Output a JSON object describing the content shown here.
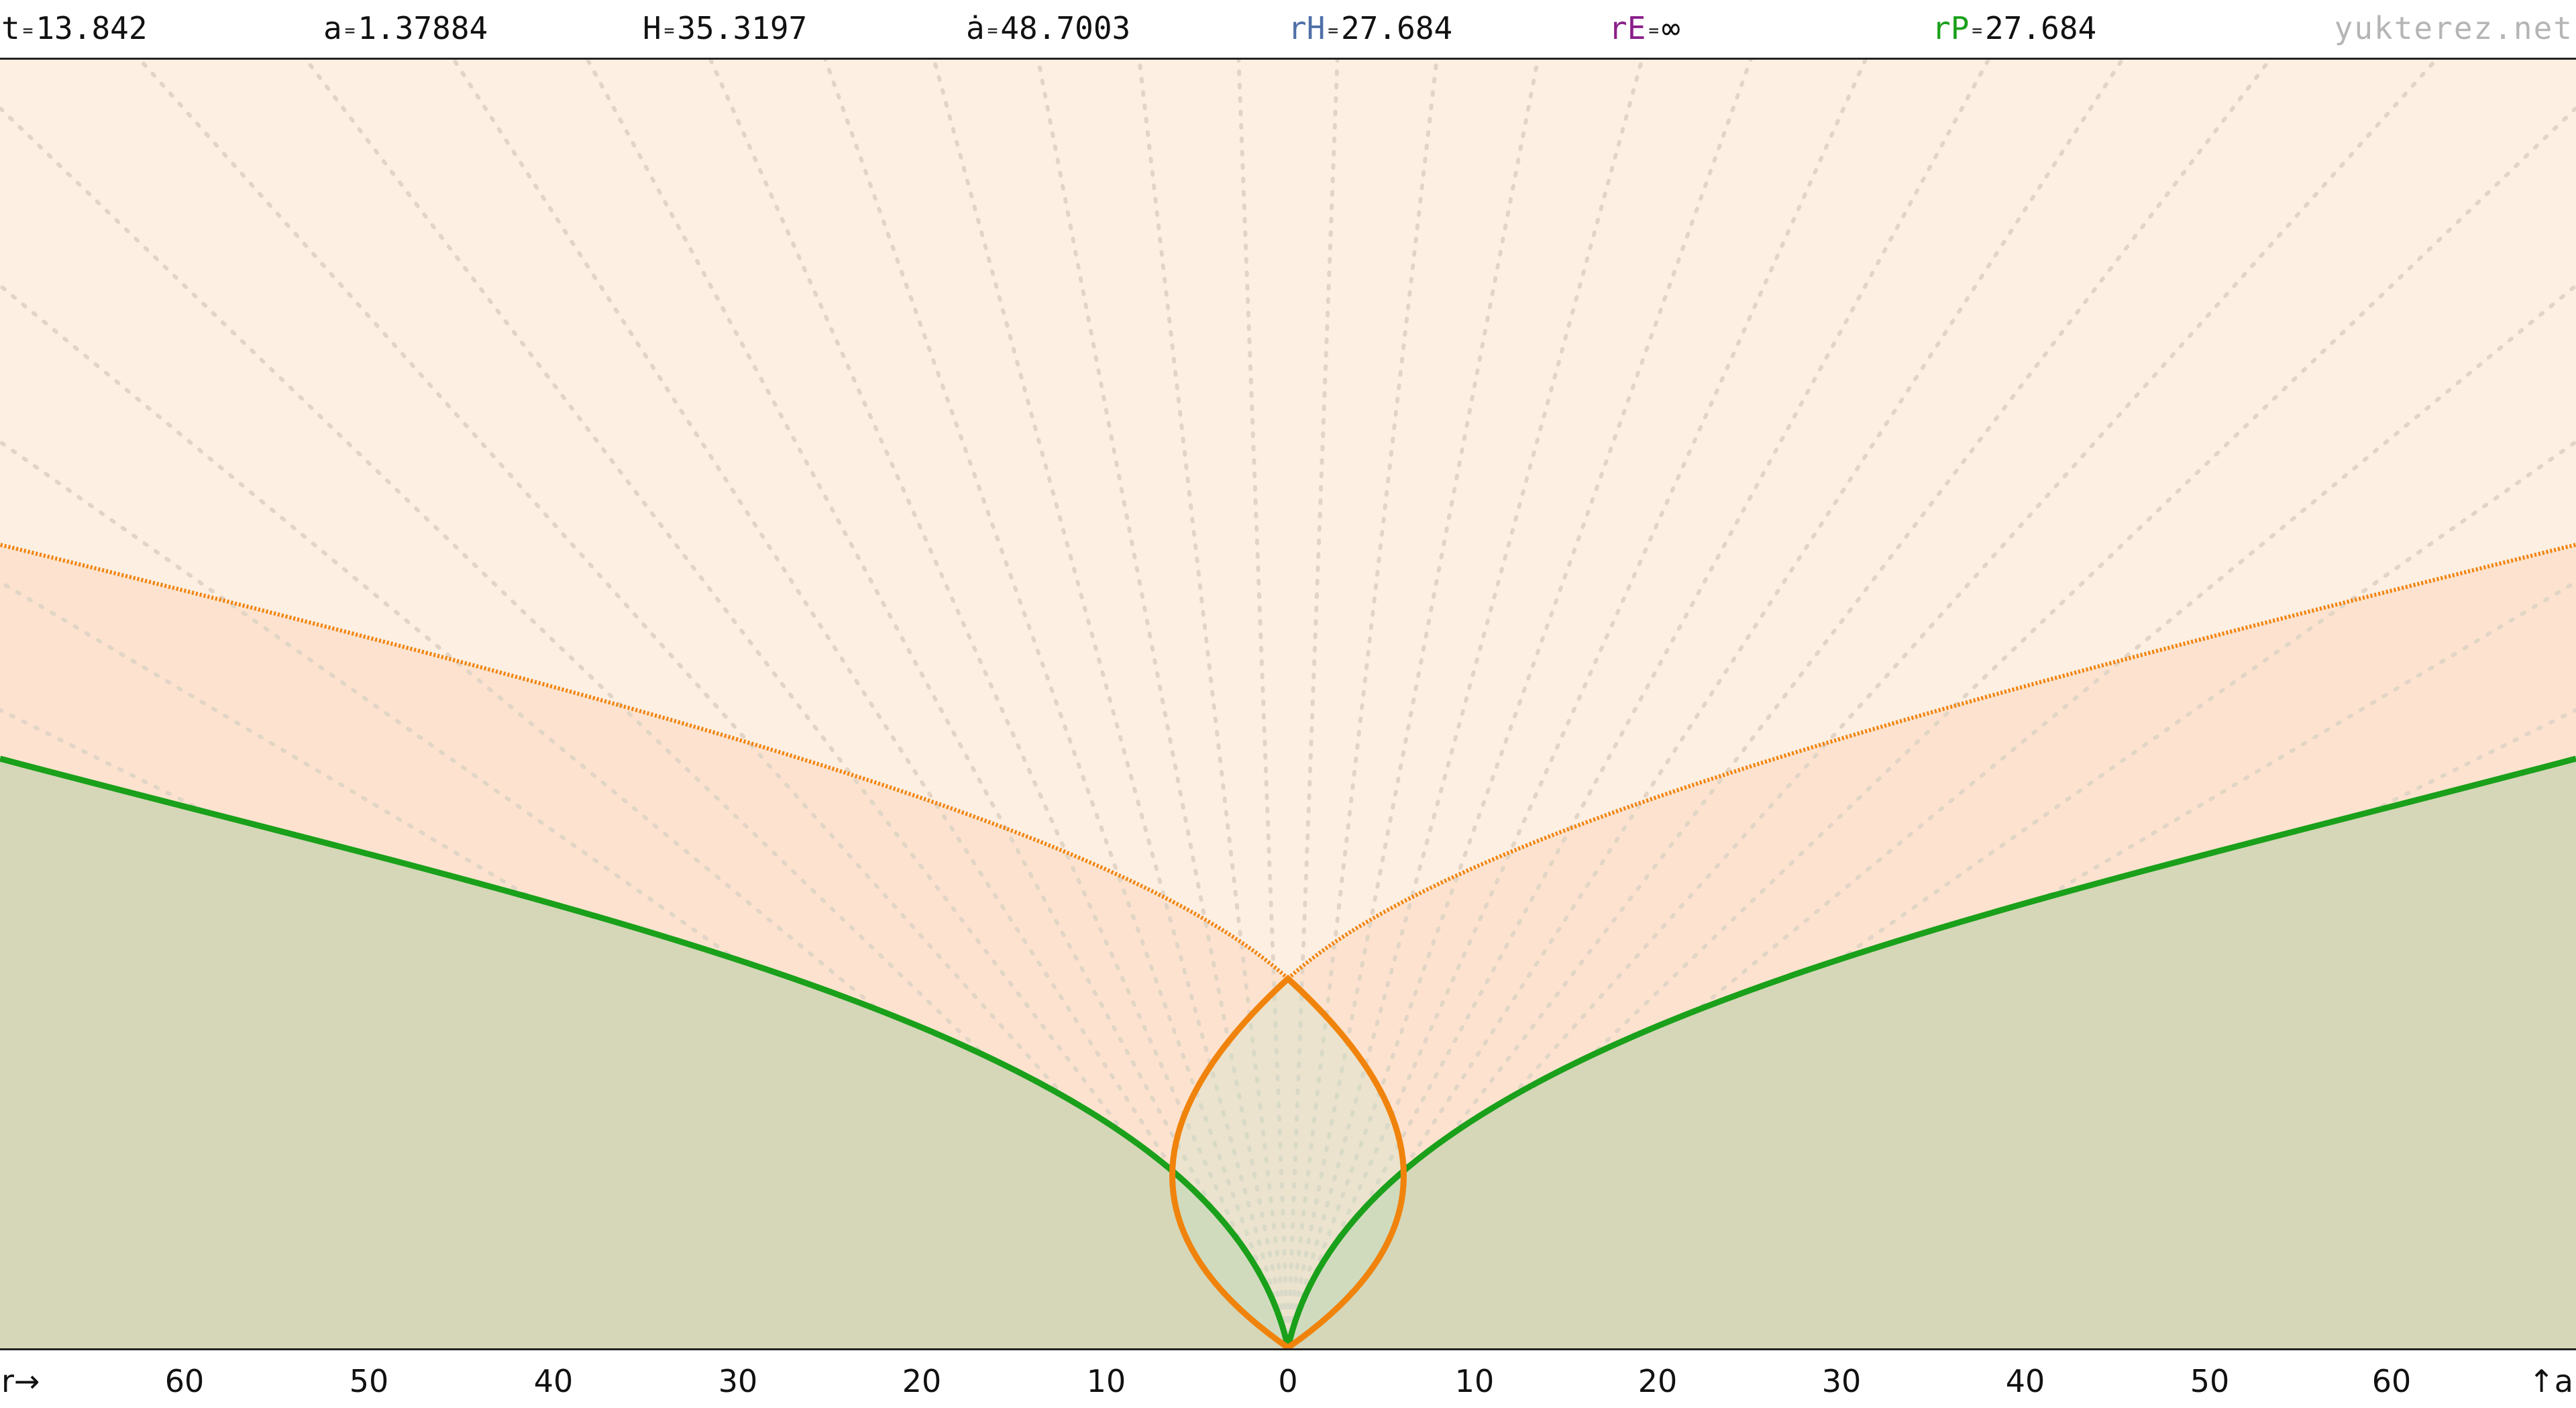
{
  "header": {
    "t": {
      "label": "t",
      "value": "13.842",
      "color": "#111111"
    },
    "a": {
      "label": "a",
      "value": "1.37884",
      "color": "#111111"
    },
    "H": {
      "label": "H",
      "value": "35.3197",
      "color": "#111111"
    },
    "adot": {
      "label": "ȧ",
      "value": "48.7003",
      "color": "#111111"
    },
    "rH": {
      "label": "rH",
      "value": "27.684",
      "color": "#4f6fa8"
    },
    "rE": {
      "label": "rE",
      "value": "∞",
      "color": "#8a1f8a"
    },
    "rP": {
      "label": "rP",
      "value": "27.684",
      "color": "#1aa01a"
    },
    "eq": "=",
    "brand": "yukterez.net"
  },
  "axis": {
    "r_label": "r→",
    "a_label": "↑a",
    "ticks_left": [
      "60",
      "50",
      "40",
      "30",
      "20",
      "10"
    ],
    "center": "0",
    "ticks_right": [
      "10",
      "20",
      "30",
      "40",
      "50",
      "60"
    ]
  },
  "colors": {
    "background_far": "#fdefe2",
    "background_mid": "#fde3cf",
    "particle_region": "#d5d7b8",
    "orange": "#f0830c",
    "green": "#1aa01a",
    "gridlines": "#e2d5c6"
  }
}
